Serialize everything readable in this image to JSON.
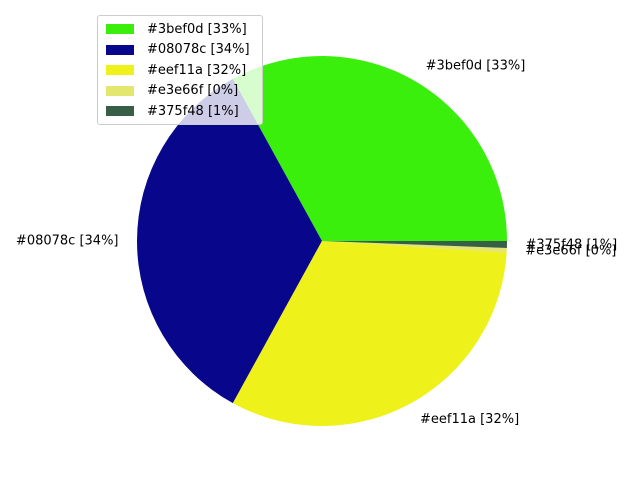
{
  "chart_data": {
    "type": "pie",
    "slices": [
      {
        "label": "#3bef0d [33%]",
        "value": 33,
        "color": "#3bef0d"
      },
      {
        "label": "#08078c [34%]",
        "value": 34,
        "color": "#08078c"
      },
      {
        "label": "#eef11a [32%]",
        "value": 32,
        "color": "#eef11a"
      },
      {
        "label": "#e3e66f [0%]",
        "value": 0.4,
        "color": "#e3e66f"
      },
      {
        "label": "#375f48 [1%]",
        "value": 0.6,
        "color": "#375f48"
      }
    ],
    "legend": {
      "placement": "upper-left",
      "entries": [
        "#3bef0d [33%]",
        "#08078c [34%]",
        "#eef11a [32%]",
        "#e3e66f [0%]",
        "#375f48 [1%]"
      ]
    }
  }
}
